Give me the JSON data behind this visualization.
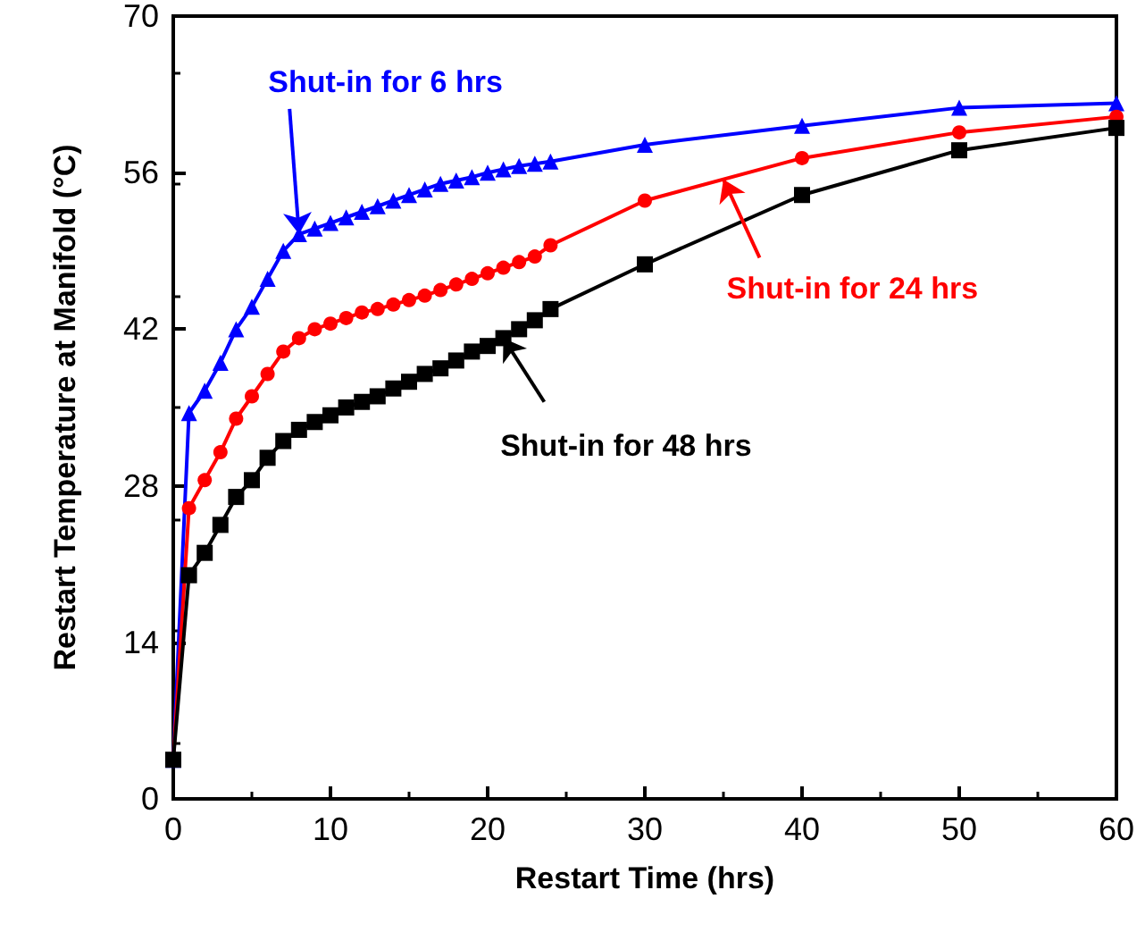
{
  "chart_data": {
    "type": "line",
    "xlabel": "Restart Time (hrs)",
    "ylabel": "Restart Temperature at Manifold (°C)",
    "xlim": [
      0,
      60
    ],
    "xticks": [
      0,
      10,
      20,
      30,
      40,
      50,
      60
    ],
    "ylim": [
      0,
      70
    ],
    "yticks": [
      0,
      14,
      28,
      42,
      56,
      70
    ],
    "grid": false,
    "line_style": "solid",
    "x": [
      0,
      1,
      2,
      3,
      4,
      5,
      6,
      7,
      8,
      9,
      10,
      11,
      12,
      13,
      14,
      15,
      16,
      17,
      18,
      19,
      20,
      21,
      22,
      23,
      24,
      30,
      40,
      50,
      60
    ],
    "series": [
      {
        "color": "#0000ff",
        "marker": "triangle",
        "values": [
          3.5,
          34.5,
          36.5,
          39,
          42,
          44,
          46.5,
          49,
          50.5,
          51,
          51.5,
          52,
          52.5,
          53,
          53.5,
          54,
          54.5,
          55,
          55.3,
          55.6,
          56,
          56.3,
          56.6,
          56.8,
          57,
          58.5,
          60.2,
          61.8,
          62.2
        ]
      },
      {
        "color": "#ff0000",
        "marker": "circle",
        "values": [
          3.5,
          26,
          28.5,
          31,
          34,
          36,
          38,
          40,
          41.2,
          42,
          42.5,
          43,
          43.5,
          43.8,
          44.2,
          44.6,
          45,
          45.5,
          46,
          46.5,
          47,
          47.5,
          48,
          48.5,
          49.5,
          53.5,
          57.3,
          59.6,
          61
        ]
      },
      {
        "color": "#000000",
        "marker": "square",
        "values": [
          3.5,
          20,
          22,
          24.5,
          27,
          28.5,
          30.5,
          32,
          33,
          33.7,
          34.3,
          35,
          35.5,
          36,
          36.7,
          37.3,
          38,
          38.5,
          39.2,
          40,
          40.5,
          41.2,
          42,
          42.8,
          43.8,
          47.8,
          54,
          58,
          60
        ]
      }
    ],
    "annotations": [
      {
        "text": "Shut-in for 6 hrs",
        "x": 8,
        "y": 50.5
      },
      {
        "text": "Shut-in for 24 hrs",
        "x": 35,
        "y": 55.4
      },
      {
        "text": "Shut-in for 48 hrs",
        "x": 21,
        "y": 41.2
      }
    ]
  }
}
